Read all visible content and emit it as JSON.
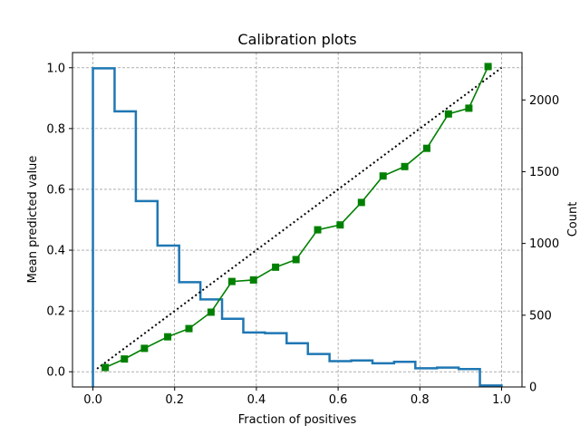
{
  "chart_data": {
    "type": "line",
    "title": "Calibration plots",
    "xlabel": "Fraction of positives",
    "ylabel": "Mean predicted value",
    "y2label": "Count",
    "xlim": [
      -0.05,
      1.05
    ],
    "ylim": [
      -0.05,
      1.05
    ],
    "y2lim": [
      0,
      2330
    ],
    "xticks": [
      "0.0",
      "0.2",
      "0.4",
      "0.6",
      "0.8",
      "1.0"
    ],
    "yticks": [
      "0.0",
      "0.2",
      "0.4",
      "0.6",
      "0.8",
      "1.0"
    ],
    "y2ticks": [
      "0",
      "500",
      "1000",
      "1500",
      "2000"
    ],
    "grid": true,
    "series": [
      {
        "kind": "diagonal",
        "style": "dotted",
        "color": "#000000",
        "x": [
          0.01,
          1.0
        ],
        "y": [
          0.01,
          1.0
        ]
      },
      {
        "kind": "calibration",
        "marker": "square",
        "color": "#008000",
        "x": [
          0.03,
          0.077,
          0.126,
          0.183,
          0.235,
          0.289,
          0.34,
          0.393,
          0.447,
          0.497,
          0.55,
          0.605,
          0.657,
          0.71,
          0.763,
          0.817,
          0.87,
          0.92,
          0.967
        ],
        "y": [
          0.014,
          0.042,
          0.077,
          0.115,
          0.142,
          0.196,
          0.297,
          0.302,
          0.344,
          0.369,
          0.467,
          0.483,
          0.557,
          0.644,
          0.675,
          0.735,
          0.848,
          0.867,
          1.004
        ]
      },
      {
        "kind": "histogram",
        "axis": "y2",
        "color": "#1f77b4",
        "bin_edges": [
          0.0,
          0.053,
          0.105,
          0.158,
          0.211,
          0.263,
          0.316,
          0.368,
          0.421,
          0.474,
          0.526,
          0.579,
          0.632,
          0.684,
          0.737,
          0.789,
          0.842,
          0.895,
          0.947,
          1.0
        ],
        "counts": [
          2220,
          1920,
          1295,
          985,
          730,
          610,
          475,
          380,
          375,
          305,
          230,
          180,
          185,
          165,
          175,
          130,
          135,
          125,
          10
        ]
      }
    ]
  }
}
